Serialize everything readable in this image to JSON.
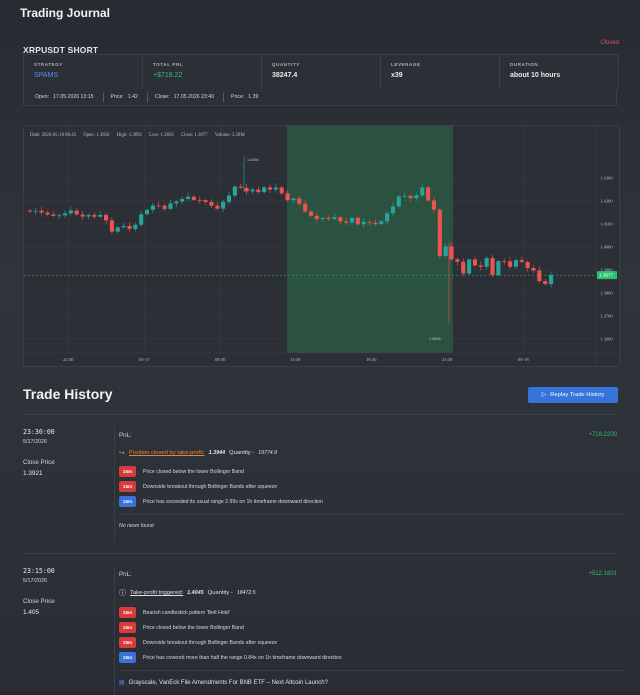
{
  "app_title": "Trading Journal",
  "trade": {
    "symbol": "XRPUSDT SHORT",
    "status": "Closed",
    "stats": [
      {
        "label": "STRATEGY",
        "value": "SPAMS"
      },
      {
        "label": "TOTAL PNL",
        "value": "+$718.22"
      },
      {
        "label": "QUANTITY",
        "value": "38247.4"
      },
      {
        "label": "LEVERAGE",
        "value": "x39"
      },
      {
        "label": "DURATION",
        "value": "about 10 hours"
      }
    ],
    "open_label": "Open:",
    "open_time": "17.05.2026 13:15",
    "open_price_label": "Price:",
    "open_price": "1.42",
    "close_label": "Close:",
    "close_time": "17.05.2026 23:40",
    "close_price_label": "Price:",
    "close_price": "1.39"
  },
  "chart": {
    "legend": {
      "date": "Date: 2026-05-18 06:45",
      "open": "Open: 1.3856",
      "high": "High: 1.3892",
      "low": "Low: 1.3856",
      "close": "Close: 1.3877",
      "volume": "Volume: 3.58M"
    },
    "y_ticks": [
      "1.4300",
      "1.4200",
      "1.4100",
      "1.4000",
      "1.3900",
      "1.3800",
      "1.3700",
      "1.3600"
    ],
    "x_ticks": [
      "22:30",
      "05-17",
      "08:30",
      "13:30",
      "18:30",
      "23:30",
      "05-18"
    ],
    "current_price": "1.3877",
    "high_marker": "1.4394",
    "low_marker": "1.3666"
  },
  "chart_data": {
    "type": "candlestick",
    "ylim": [
      1.356,
      1.443
    ],
    "price_line": 1.3877,
    "highlight_range_x": [
      "13:15",
      "23:40"
    ],
    "closes": [
      1.4154,
      1.4157,
      1.4149,
      1.4141,
      1.4135,
      1.4137,
      1.4146,
      1.4158,
      1.4141,
      1.4132,
      1.4139,
      1.4131,
      1.4139,
      1.4115,
      1.4066,
      1.4085,
      1.4091,
      1.4078,
      1.4096,
      1.4142,
      1.4161,
      1.418,
      1.4179,
      1.4165,
      1.4189,
      1.4197,
      1.4208,
      1.4218,
      1.4204,
      1.4203,
      1.4195,
      1.4179,
      1.4166,
      1.4196,
      1.4223,
      1.4262,
      1.4257,
      1.4241,
      1.4249,
      1.4238,
      1.4259,
      1.4249,
      1.4258,
      1.4233,
      1.4203,
      1.421,
      1.4188,
      1.4154,
      1.4135,
      1.4121,
      1.4126,
      1.4121,
      1.4129,
      1.4111,
      1.4106,
      1.4126,
      1.4098,
      1.4109,
      1.4105,
      1.4099,
      1.4111,
      1.4146,
      1.4176,
      1.4219,
      1.4222,
      1.4212,
      1.4224,
      1.4258,
      1.4202,
      1.4162,
      1.396,
      1.4002,
      1.3946,
      1.3935,
      1.3884,
      1.3945,
      1.3919,
      1.3913,
      1.3951,
      1.3877,
      1.3938,
      1.3937,
      1.3913,
      1.3942,
      1.3934,
      1.3908,
      1.3897,
      1.3851,
      1.3838,
      1.3877
    ]
  },
  "history": {
    "title": "Trade History",
    "replay_label": "Replay Trade History",
    "entries": [
      {
        "time": "23:30:00",
        "date": "5/17/2026",
        "close_price_label": "Close Price",
        "close_price": "1.3921",
        "pnl_label": "PnL:",
        "pnl_value": "+718.2200",
        "event_text": "Position closed by take-profit:",
        "event_price": "1.3944",
        "quantity_label": "Quantity -",
        "quantity": "19774.9",
        "signals": [
          {
            "tf": "15m",
            "text": "Price closed below the lower Bollinger Band",
            "color": "red"
          },
          {
            "tf": "15m",
            "text": "Downside breakout through Bollinger Bands after squeeze",
            "color": "red"
          },
          {
            "tf": "15m",
            "text": "Price has exceeded its usual range 2.99x on 1h timeframe downward direction",
            "color": "blue"
          }
        ],
        "news": "No news found"
      },
      {
        "time": "23:15:00",
        "date": "5/17/2026",
        "close_price_label": "Close Price",
        "close_price": "1.405",
        "pnl_label": "PnL:",
        "pnl_value": "+512.1801",
        "event_text": "Take-profit triggered:",
        "event_price": "1.4045",
        "quantity_label": "Quantity -",
        "quantity": "18472.5",
        "signals": [
          {
            "tf": "15m",
            "text": "Bearish candlestick pattern 'Belt Hold'",
            "color": "red"
          },
          {
            "tf": "15m",
            "text": "Price closed below the lower Bollinger Band",
            "color": "red"
          },
          {
            "tf": "15m",
            "text": "Downside breakout through Bollinger Bands after squeeze",
            "color": "red"
          },
          {
            "tf": "15m",
            "text": "Price has covered more than half the range 0.84x on 1h timeframe downward direction",
            "color": "blue"
          }
        ],
        "news": "Grayscale, VanEck File Amendments For BNB ETF – Next Altcoin Launch?"
      }
    ]
  }
}
